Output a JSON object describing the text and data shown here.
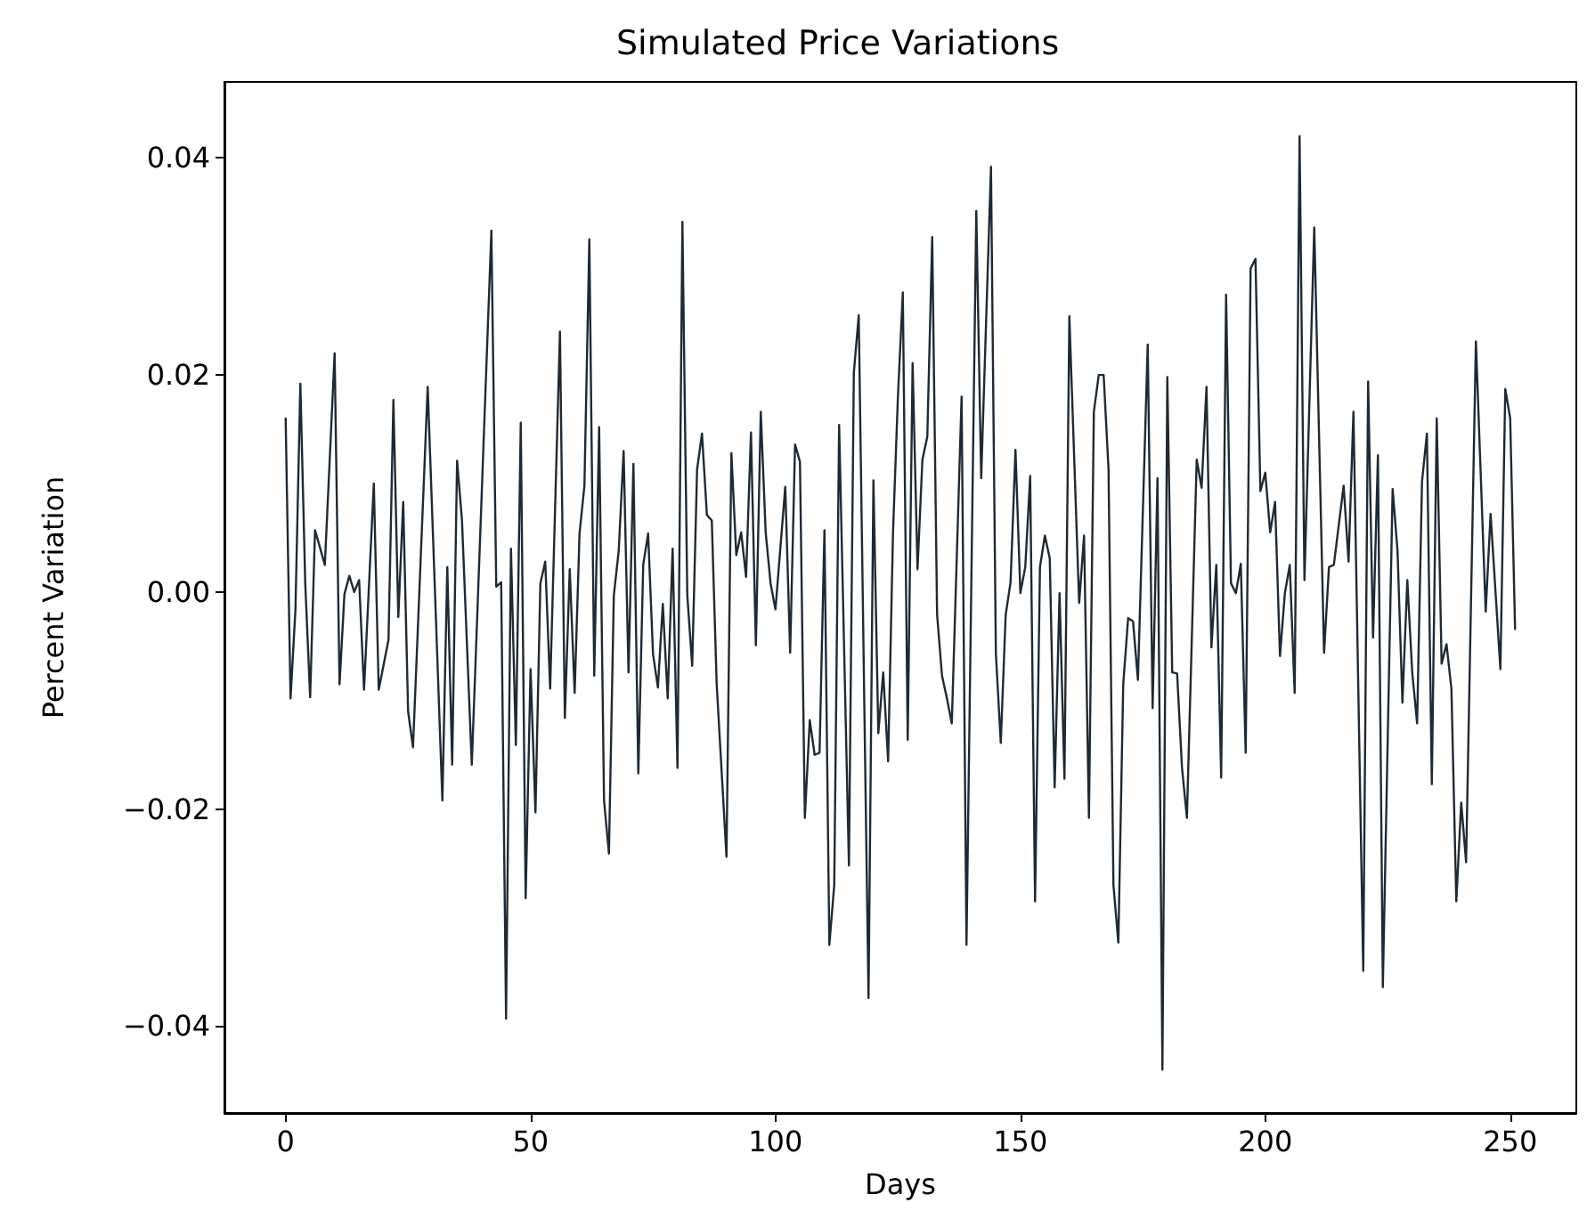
{
  "chart_data": {
    "type": "line",
    "title": "Simulated Price Variations",
    "xlabel": "Days",
    "ylabel": "Percent Variation",
    "xlim": [
      -12.5,
      263.5
    ],
    "xticks": [
      0,
      50,
      100,
      150,
      200,
      250
    ],
    "ylim": [
      -0.048,
      0.047
    ],
    "yticks": [
      {
        "value": -0.04,
        "label": "−0.04"
      },
      {
        "value": -0.02,
        "label": "−0.02"
      },
      {
        "value": 0,
        "label": "0.00"
      },
      {
        "value": 0.02,
        "label": "0.02"
      },
      {
        "value": 0.04,
        "label": "0.04"
      }
    ],
    "grid": false,
    "marker": "none",
    "line_style": "solid",
    "series": [
      {
        "color": "#1f2a33",
        "x": [
          0,
          1,
          2,
          3,
          4,
          5,
          6,
          8,
          10,
          11,
          12,
          13,
          14,
          15,
          16,
          18,
          19,
          21,
          22,
          23,
          24,
          25,
          26,
          29,
          32,
          33,
          34,
          35,
          36,
          38,
          42,
          43,
          44,
          45,
          46,
          47,
          48,
          49,
          50,
          51,
          52,
          53,
          54,
          56,
          57,
          58,
          59,
          60,
          61,
          62,
          63,
          64,
          65,
          66,
          67,
          68,
          69,
          70,
          71,
          72,
          73,
          74,
          75,
          76,
          77,
          78,
          79,
          80,
          81,
          82,
          83,
          84,
          85,
          86,
          87,
          88,
          90,
          91,
          92,
          93,
          94,
          95,
          96,
          97,
          98,
          99,
          100,
          102,
          103,
          104,
          105,
          106,
          107,
          108,
          109,
          110,
          111,
          112,
          113,
          115,
          116,
          117,
          119,
          120,
          121,
          122,
          123,
          124,
          125,
          126,
          127,
          128,
          129,
          130,
          131,
          132,
          133,
          134,
          135,
          136,
          138,
          139,
          141,
          142,
          144,
          145,
          146,
          147,
          148,
          149,
          150,
          151,
          152,
          153,
          154,
          155,
          156,
          157,
          158,
          159,
          160,
          162,
          163,
          164,
          165,
          166,
          167,
          168,
          169,
          170,
          171,
          172,
          173,
          174,
          176,
          177,
          178,
          179,
          180,
          181,
          182,
          183,
          184,
          186,
          187,
          188,
          189,
          190,
          191,
          192,
          193,
          194,
          195,
          196,
          197,
          198,
          199,
          200,
          201,
          202,
          203,
          204,
          205,
          206,
          207,
          208,
          210,
          212,
          213,
          214,
          216,
          217,
          218,
          220,
          221,
          222,
          223,
          224,
          226,
          227,
          228,
          229,
          230,
          231,
          232,
          233,
          234,
          235,
          236,
          237,
          238,
          239,
          240,
          241,
          243,
          245,
          246,
          248,
          249,
          250,
          251
        ],
        "values": [
          0.016,
          -0.0098,
          -0.0016,
          0.0192,
          0.0008,
          -0.0097,
          0.0057,
          0.0025,
          0.022,
          -0.0085,
          -0.0002,
          0.0015,
          0,
          0.0011,
          -0.009,
          0.01,
          -0.009,
          -0.0044,
          0.0177,
          -0.0023,
          0.0083,
          -0.011,
          -0.0143,
          0.0189,
          -0.0192,
          0.0023,
          -0.0159,
          0.0121,
          0.0066,
          -0.0159,
          0.0333,
          0.0005,
          0.0009,
          -0.0393,
          0.004,
          -0.0141,
          0.0156,
          -0.0282,
          -0.0071,
          -0.0203,
          0.0008,
          0.0028,
          -0.0089,
          0.024,
          -0.0116,
          0.0021,
          -0.0093,
          0.0054,
          0.0098,
          0.0325,
          -0.0077,
          0.0152,
          -0.0192,
          -0.0241,
          -0.0003,
          0.0038,
          0.013,
          -0.0074,
          0.0118,
          -0.0167,
          0.0025,
          0.0054,
          -0.0057,
          -0.0088,
          -0.0011,
          -0.0098,
          0.004,
          -0.0162,
          0.0341,
          -0.0003,
          -0.0068,
          0.0113,
          0.0146,
          0.0071,
          0.0066,
          -0.0085,
          -0.0244,
          0.0128,
          0.0034,
          0.0055,
          0.0014,
          0.0147,
          -0.0049,
          0.0166,
          0.0055,
          0.0008,
          -0.0016,
          0.0097,
          -0.0056,
          0.0136,
          0.012,
          -0.0208,
          -0.0118,
          -0.015,
          -0.0148,
          0.0057,
          -0.0325,
          -0.027,
          0.0154,
          -0.0252,
          0.0202,
          0.0255,
          -0.0374,
          0.0103,
          -0.013,
          -0.0074,
          -0.0156,
          0.0055,
          0.018,
          0.0276,
          -0.0136,
          0.0211,
          0.0021,
          0.0122,
          0.0143,
          0.0327,
          -0.0021,
          -0.0077,
          -0.0098,
          -0.0121,
          0.018,
          -0.0325,
          0.0351,
          0.0105,
          0.0392,
          -0.0057,
          -0.0139,
          -0.0021,
          0.0009,
          0.0131,
          -0.0001,
          0.0023,
          0.0107,
          -0.0285,
          0.0023,
          0.0052,
          0.0031,
          -0.018,
          -0.0001,
          -0.0172,
          0.0254,
          -0.001,
          0.0052,
          -0.0208,
          0.0166,
          0.02,
          0.02,
          0.0113,
          -0.027,
          -0.0323,
          -0.0085,
          -0.0024,
          -0.0027,
          -0.0081,
          0.0228,
          -0.0107,
          0.0105,
          -0.044,
          0.0198,
          -0.0074,
          -0.0075,
          -0.0162,
          -0.0208,
          0.0122,
          0.0096,
          0.0189,
          -0.0051,
          0.0025,
          -0.0171,
          0.0274,
          0.0008,
          -0.0001,
          0.0026,
          -0.0148,
          0.0298,
          0.0307,
          0.0093,
          0.011,
          0.0055,
          0.0083,
          -0.0059,
          -0.0001,
          0.0025,
          -0.0093,
          0.042,
          0.0011,
          0.0336,
          -0.0056,
          0.0023,
          0.0025,
          0.0098,
          0.0028,
          0.0166,
          -0.0349,
          0.0194,
          -0.0042,
          0.0126,
          -0.0364,
          0.0095,
          0.0038,
          -0.0102,
          0.0011,
          -0.0074,
          -0.0121,
          0.0102,
          0.0146,
          -0.0177,
          0.016,
          -0.0066,
          -0.0048,
          -0.0089,
          -0.0285,
          -0.0194,
          -0.0249,
          0.0231,
          -0.0018,
          0.0072,
          -0.0071,
          0.0187,
          0.016,
          -0.0034
        ]
      }
    ]
  }
}
